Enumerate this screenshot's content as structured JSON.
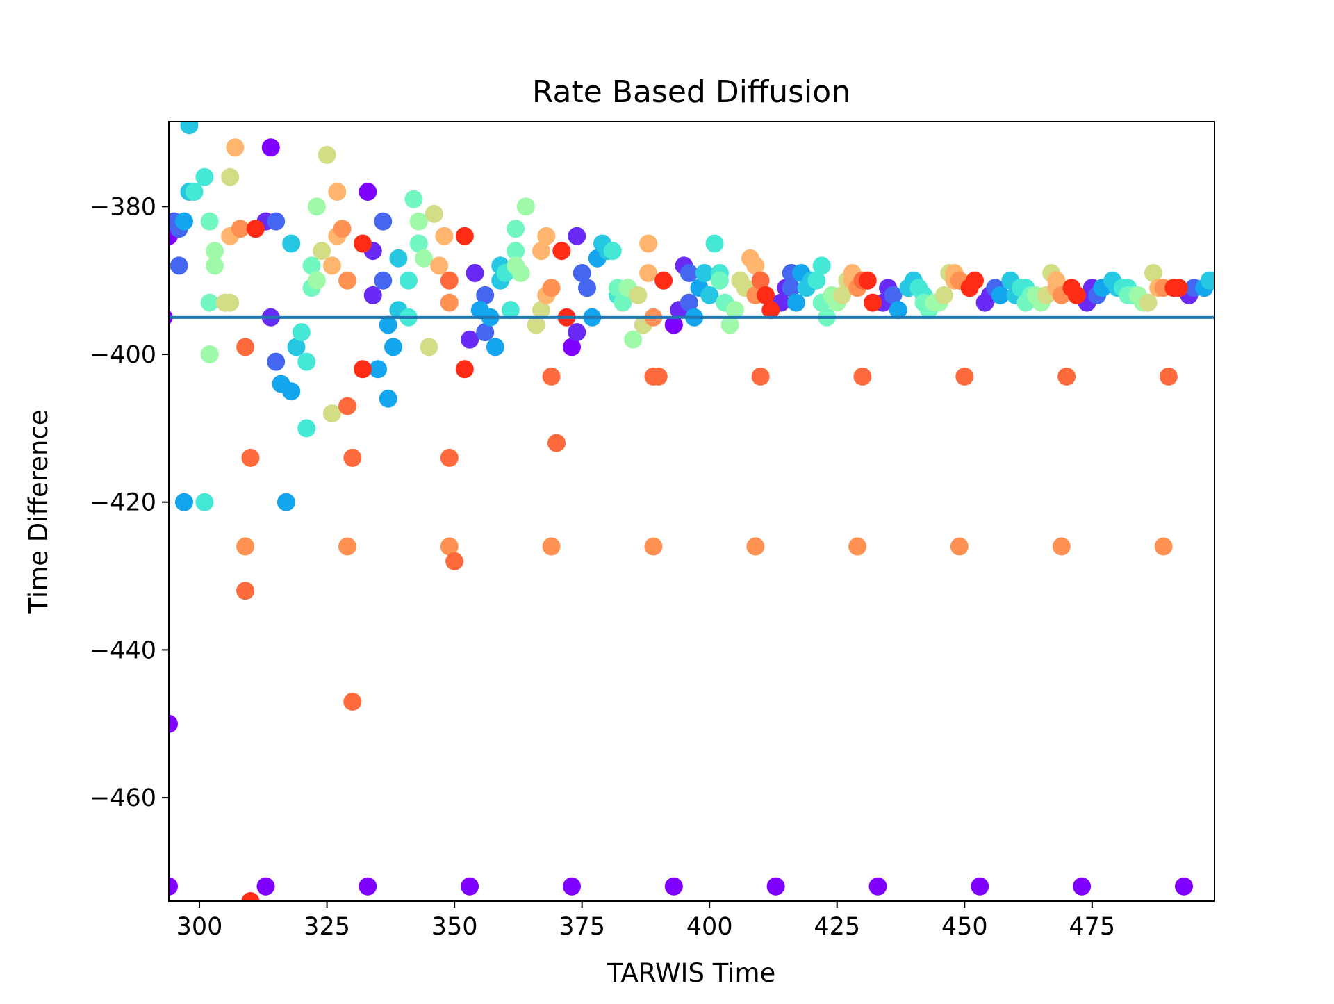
{
  "chart_data": {
    "type": "scatter",
    "title": "Rate Based Diffusion",
    "xlabel": "TARWIS Time",
    "ylabel": "Time Difference",
    "xlim": [
      294,
      499
    ],
    "ylim": [
      -474,
      -368.5
    ],
    "xticks": [
      300,
      325,
      350,
      375,
      400,
      425,
      450,
      475
    ],
    "yticks": [
      -380,
      -400,
      -420,
      -440,
      -460
    ],
    "xtick_labels": [
      "300",
      "325",
      "350",
      "375",
      "400",
      "425",
      "450",
      "475"
    ],
    "ytick_labels": [
      "−380",
      "−400",
      "−420",
      "−440",
      "−460"
    ],
    "grid": false,
    "colormap": "rainbow",
    "reference_line": {
      "y": -395,
      "color": "#1f77b4"
    },
    "colors": {
      "violet": "#7f00ff",
      "indigo": "#6a2af5",
      "blue": "#4466f0",
      "azure": "#13a5ee",
      "cyan": "#26c7e2",
      "teal": "#44e8d4",
      "mint": "#71f7bf",
      "lightgreen": "#9ef9a8",
      "lime": "#d2dd85",
      "peach": "#ffb56d",
      "orange": "#ff9152",
      "redorange": "#ff6a3c",
      "red": "#ff2b15"
    },
    "series": [
      {
        "color": "violet",
        "points": [
          [
            294,
            -472
          ],
          [
            294,
            -450
          ],
          [
            313,
            -472
          ],
          [
            333,
            -472
          ],
          [
            353,
            -472
          ],
          [
            373,
            -472
          ],
          [
            393,
            -472
          ],
          [
            413,
            -472
          ],
          [
            433,
            -472
          ],
          [
            453,
            -472
          ],
          [
            473,
            -472
          ],
          [
            493,
            -472
          ],
          [
            294,
            -384
          ],
          [
            314,
            -372
          ],
          [
            333,
            -378
          ],
          [
            373,
            -399
          ],
          [
            393,
            -396
          ],
          [
            293,
            -395
          ]
        ]
      },
      {
        "color": "indigo",
        "points": [
          [
            314,
            -395
          ],
          [
            334,
            -392
          ],
          [
            354,
            -389
          ],
          [
            334,
            -386
          ],
          [
            353,
            -398
          ],
          [
            374,
            -397
          ],
          [
            394,
            -394
          ],
          [
            414,
            -393
          ],
          [
            434,
            -393
          ],
          [
            454,
            -393
          ],
          [
            474,
            -393
          ],
          [
            494,
            -392
          ],
          [
            313,
            -382
          ],
          [
            374,
            -384
          ],
          [
            395,
            -388
          ],
          [
            415,
            -391
          ],
          [
            435,
            -391
          ],
          [
            455,
            -392
          ],
          [
            475,
            -391
          ]
        ]
      },
      {
        "color": "blue",
        "points": [
          [
            295,
            -382
          ],
          [
            296,
            -383
          ],
          [
            296,
            -388
          ],
          [
            315,
            -401
          ],
          [
            315,
            -382
          ],
          [
            336,
            -390
          ],
          [
            336,
            -382
          ],
          [
            356,
            -392
          ],
          [
            356,
            -397
          ],
          [
            375,
            -389
          ],
          [
            376,
            -391
          ],
          [
            396,
            -389
          ],
          [
            396,
            -393
          ],
          [
            416,
            -391
          ],
          [
            416,
            -389
          ],
          [
            436,
            -392
          ],
          [
            456,
            -391
          ],
          [
            476,
            -392
          ],
          [
            495,
            -391
          ]
        ]
      },
      {
        "color": "azure",
        "points": [
          [
            297,
            -382
          ],
          [
            297,
            -420
          ],
          [
            317,
            -420
          ],
          [
            316,
            -404
          ],
          [
            318,
            -405
          ],
          [
            337,
            -406
          ],
          [
            337,
            -396
          ],
          [
            338,
            -399
          ],
          [
            357,
            -395
          ],
          [
            358,
            -399
          ],
          [
            377,
            -395
          ],
          [
            378,
            -387
          ],
          [
            397,
            -395
          ],
          [
            398,
            -391
          ],
          [
            417,
            -393
          ],
          [
            418,
            -389
          ],
          [
            437,
            -394
          ],
          [
            457,
            -392
          ],
          [
            477,
            -391
          ],
          [
            497,
            -391
          ],
          [
            335,
            -402
          ],
          [
            355,
            -394
          ]
        ]
      },
      {
        "color": "cyan",
        "points": [
          [
            298,
            -369
          ],
          [
            298,
            -378
          ],
          [
            318,
            -385
          ],
          [
            319,
            -399
          ],
          [
            339,
            -394
          ],
          [
            339,
            -387
          ],
          [
            359,
            -388
          ],
          [
            359,
            -390
          ],
          [
            379,
            -385
          ],
          [
            380,
            -386
          ],
          [
            399,
            -389
          ],
          [
            400,
            -392
          ],
          [
            419,
            -391
          ],
          [
            420,
            -390
          ],
          [
            439,
            -391
          ],
          [
            440,
            -390
          ],
          [
            459,
            -390
          ],
          [
            460,
            -392
          ],
          [
            479,
            -390
          ],
          [
            480,
            -391
          ],
          [
            498,
            -390
          ],
          [
            499,
            -390
          ]
        ]
      },
      {
        "color": "teal",
        "points": [
          [
            299,
            -378
          ],
          [
            301,
            -420
          ],
          [
            301,
            -376
          ],
          [
            320,
            -397
          ],
          [
            321,
            -410
          ],
          [
            341,
            -390
          ],
          [
            341,
            -395
          ],
          [
            360,
            -389
          ],
          [
            361,
            -394
          ],
          [
            381,
            -386
          ],
          [
            382,
            -392
          ],
          [
            401,
            -385
          ],
          [
            402,
            -389
          ],
          [
            421,
            -390
          ],
          [
            422,
            -388
          ],
          [
            441,
            -391
          ],
          [
            442,
            -392
          ],
          [
            461,
            -391
          ],
          [
            462,
            -391
          ],
          [
            481,
            -391
          ],
          [
            482,
            -391
          ],
          [
            321,
            -401
          ]
        ]
      },
      {
        "color": "mint",
        "points": [
          [
            302,
            -382
          ],
          [
            302,
            -393
          ],
          [
            322,
            -388
          ],
          [
            322,
            -391
          ],
          [
            342,
            -379
          ],
          [
            343,
            -385
          ],
          [
            362,
            -386
          ],
          [
            362,
            -383
          ],
          [
            382,
            -391
          ],
          [
            383,
            -393
          ],
          [
            402,
            -390
          ],
          [
            403,
            -393
          ],
          [
            422,
            -393
          ],
          [
            423,
            -395
          ],
          [
            442,
            -393
          ],
          [
            443,
            -394
          ],
          [
            462,
            -393
          ],
          [
            463,
            -392
          ],
          [
            482,
            -392
          ],
          [
            483,
            -392
          ]
        ]
      },
      {
        "color": "lightgreen",
        "points": [
          [
            302,
            -400
          ],
          [
            303,
            -388
          ],
          [
            323,
            -390
          ],
          [
            323,
            -380
          ],
          [
            343,
            -382
          ],
          [
            344,
            -387
          ],
          [
            363,
            -389
          ],
          [
            364,
            -380
          ],
          [
            384,
            -391
          ],
          [
            385,
            -398
          ],
          [
            404,
            -396
          ],
          [
            405,
            -394
          ],
          [
            424,
            -392
          ],
          [
            425,
            -393
          ],
          [
            444,
            -393
          ],
          [
            445,
            -393
          ],
          [
            464,
            -392
          ],
          [
            465,
            -393
          ],
          [
            484,
            -392
          ],
          [
            485,
            -393
          ],
          [
            303,
            -386
          ],
          [
            362,
            -388
          ]
        ]
      },
      {
        "color": "lime",
        "points": [
          [
            305,
            -393
          ],
          [
            306,
            -376
          ],
          [
            324,
            -386
          ],
          [
            325,
            -373
          ],
          [
            326,
            -408
          ],
          [
            345,
            -399
          ],
          [
            346,
            -381
          ],
          [
            366,
            -396
          ],
          [
            367,
            -394
          ],
          [
            386,
            -392
          ],
          [
            387,
            -396
          ],
          [
            406,
            -390
          ],
          [
            407,
            -391
          ],
          [
            426,
            -392
          ],
          [
            427,
            -390
          ],
          [
            446,
            -392
          ],
          [
            447,
            -389
          ],
          [
            466,
            -392
          ],
          [
            467,
            -389
          ],
          [
            486,
            -393
          ],
          [
            487,
            -389
          ],
          [
            306,
            -393
          ]
        ]
      },
      {
        "color": "peach",
        "points": [
          [
            306,
            -384
          ],
          [
            307,
            -372
          ],
          [
            327,
            -378
          ],
          [
            327,
            -384
          ],
          [
            347,
            -388
          ],
          [
            348,
            -384
          ],
          [
            368,
            -384
          ],
          [
            368,
            -392
          ],
          [
            388,
            -385
          ],
          [
            388,
            -389
          ],
          [
            408,
            -387
          ],
          [
            409,
            -388
          ],
          [
            428,
            -389
          ],
          [
            428,
            -390
          ],
          [
            448,
            -390
          ],
          [
            448,
            -389
          ],
          [
            468,
            -390
          ],
          [
            468,
            -391
          ],
          [
            488,
            -391
          ],
          [
            488,
            -391
          ],
          [
            367,
            -386
          ],
          [
            326,
            -388
          ]
        ]
      },
      {
        "color": "orange",
        "points": [
          [
            309,
            -426
          ],
          [
            329,
            -426
          ],
          [
            349,
            -426
          ],
          [
            369,
            -426
          ],
          [
            389,
            -426
          ],
          [
            409,
            -426
          ],
          [
            429,
            -426
          ],
          [
            449,
            -426
          ],
          [
            469,
            -426
          ],
          [
            489,
            -426
          ],
          [
            308,
            -383
          ],
          [
            328,
            -383
          ],
          [
            329,
            -390
          ],
          [
            349,
            -393
          ],
          [
            369,
            -391
          ],
          [
            389,
            -395
          ],
          [
            409,
            -392
          ],
          [
            429,
            -391
          ],
          [
            449,
            -390
          ],
          [
            469,
            -392
          ],
          [
            489,
            -391
          ]
        ]
      },
      {
        "color": "redorange",
        "points": [
          [
            309,
            -399
          ],
          [
            310,
            -414
          ],
          [
            309,
            -432
          ],
          [
            329,
            -407
          ],
          [
            330,
            -414
          ],
          [
            330,
            -447
          ],
          [
            349,
            -414
          ],
          [
            350,
            -428
          ],
          [
            369,
            -403
          ],
          [
            370,
            -412
          ],
          [
            389,
            -403
          ],
          [
            390,
            -403
          ],
          [
            410,
            -403
          ],
          [
            430,
            -403
          ],
          [
            450,
            -403
          ],
          [
            470,
            -403
          ],
          [
            490,
            -403
          ],
          [
            349,
            -390
          ],
          [
            410,
            -390
          ],
          [
            430,
            -390
          ]
        ]
      },
      {
        "color": "red",
        "points": [
          [
            311,
            -383
          ],
          [
            310,
            -474
          ],
          [
            332,
            -385
          ],
          [
            332,
            -402
          ],
          [
            352,
            -384
          ],
          [
            352,
            -402
          ],
          [
            371,
            -386
          ],
          [
            372,
            -395
          ],
          [
            391,
            -390
          ],
          [
            411,
            -392
          ],
          [
            412,
            -394
          ],
          [
            431,
            -390
          ],
          [
            432,
            -393
          ],
          [
            451,
            -391
          ],
          [
            452,
            -390
          ],
          [
            471,
            -391
          ],
          [
            472,
            -392
          ],
          [
            491,
            -391
          ],
          [
            492,
            -391
          ]
        ]
      }
    ]
  }
}
